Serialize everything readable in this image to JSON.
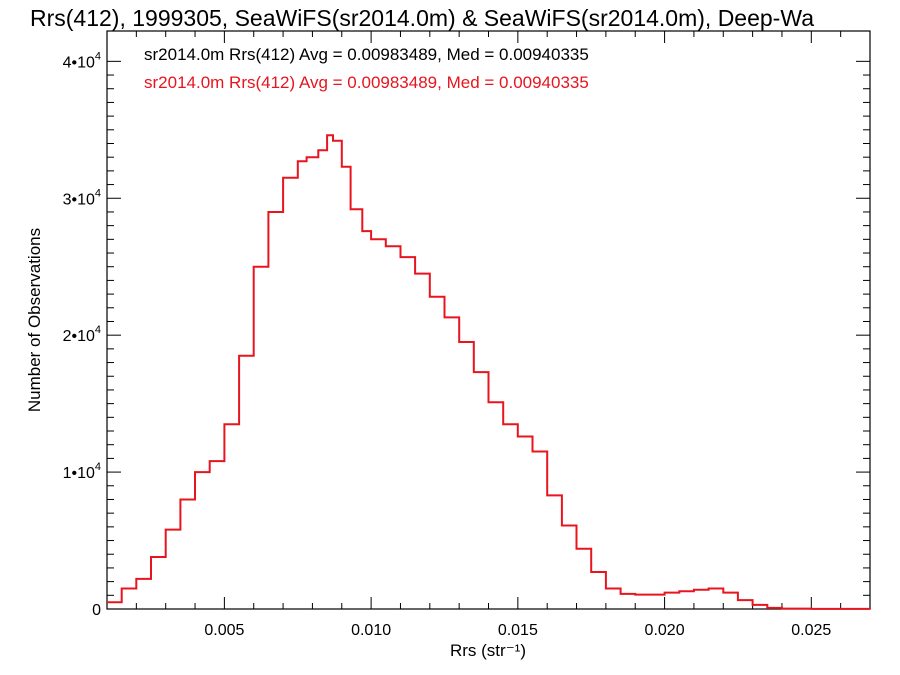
{
  "chart_data": {
    "type": "line",
    "title": "Rrs(412), 1999305, SeaWiFS(sr2014.0m) & SeaWiFS(sr2014.0m), Deep-Wa",
    "xlabel": "Rrs (str⁻¹)",
    "ylabel": "Number of Observations",
    "xlim": [
      0.001,
      0.027
    ],
    "ylim": [
      0,
      40000
    ],
    "x_ticks": [
      {
        "value": 0.005,
        "label": "0.005"
      },
      {
        "value": 0.01,
        "label": "0.010"
      },
      {
        "value": 0.015,
        "label": "0.015"
      },
      {
        "value": 0.02,
        "label": "0.020"
      },
      {
        "value": 0.025,
        "label": "0.025"
      }
    ],
    "y_ticks": [
      {
        "value": 0,
        "base": "0",
        "exp": ""
      },
      {
        "value": 10000,
        "base": "1•10",
        "exp": "4"
      },
      {
        "value": 20000,
        "base": "2•10",
        "exp": "4"
      },
      {
        "value": 30000,
        "base": "3•10",
        "exp": "4"
      },
      {
        "value": 40000,
        "base": "4•10",
        "exp": "4"
      }
    ],
    "grid": false,
    "legend": [
      {
        "text": "sr2014.0m Rrs(412) Avg = 0.00983489, Med = 0.00940335",
        "color": "#000000"
      },
      {
        "text": "sr2014.0m Rrs(412) Avg = 0.00983489, Med = 0.00940335",
        "color": "#e8141e"
      }
    ],
    "series": [
      {
        "color": "#e8141e",
        "x": [
          0.001,
          0.0015,
          0.002,
          0.0025,
          0.003,
          0.0035,
          0.004,
          0.0045,
          0.005,
          0.0055,
          0.006,
          0.0065,
          0.007,
          0.0075,
          0.0078,
          0.0082,
          0.0085,
          0.0087,
          0.009,
          0.0093,
          0.0097,
          0.01,
          0.0105,
          0.011,
          0.0115,
          0.012,
          0.0125,
          0.013,
          0.0135,
          0.014,
          0.0145,
          0.015,
          0.0155,
          0.016,
          0.0165,
          0.017,
          0.0175,
          0.018,
          0.0185,
          0.019,
          0.0195,
          0.02,
          0.0205,
          0.021,
          0.0215,
          0.022,
          0.0225,
          0.023,
          0.0235,
          0.024,
          0.025,
          0.026,
          0.027
        ],
        "y": [
          500,
          1500,
          2200,
          3800,
          5800,
          8000,
          10000,
          10800,
          13500,
          18500,
          25000,
          29000,
          31500,
          32700,
          33000,
          33500,
          34600,
          34200,
          32300,
          29200,
          27600,
          27000,
          26500,
          25700,
          24500,
          22800,
          21300,
          19500,
          17300,
          15100,
          13500,
          12600,
          11500,
          8300,
          6100,
          4400,
          2700,
          1500,
          1100,
          1050,
          1050,
          1200,
          1300,
          1400,
          1500,
          1200,
          650,
          300,
          80,
          30,
          10,
          5,
          0
        ]
      }
    ]
  }
}
